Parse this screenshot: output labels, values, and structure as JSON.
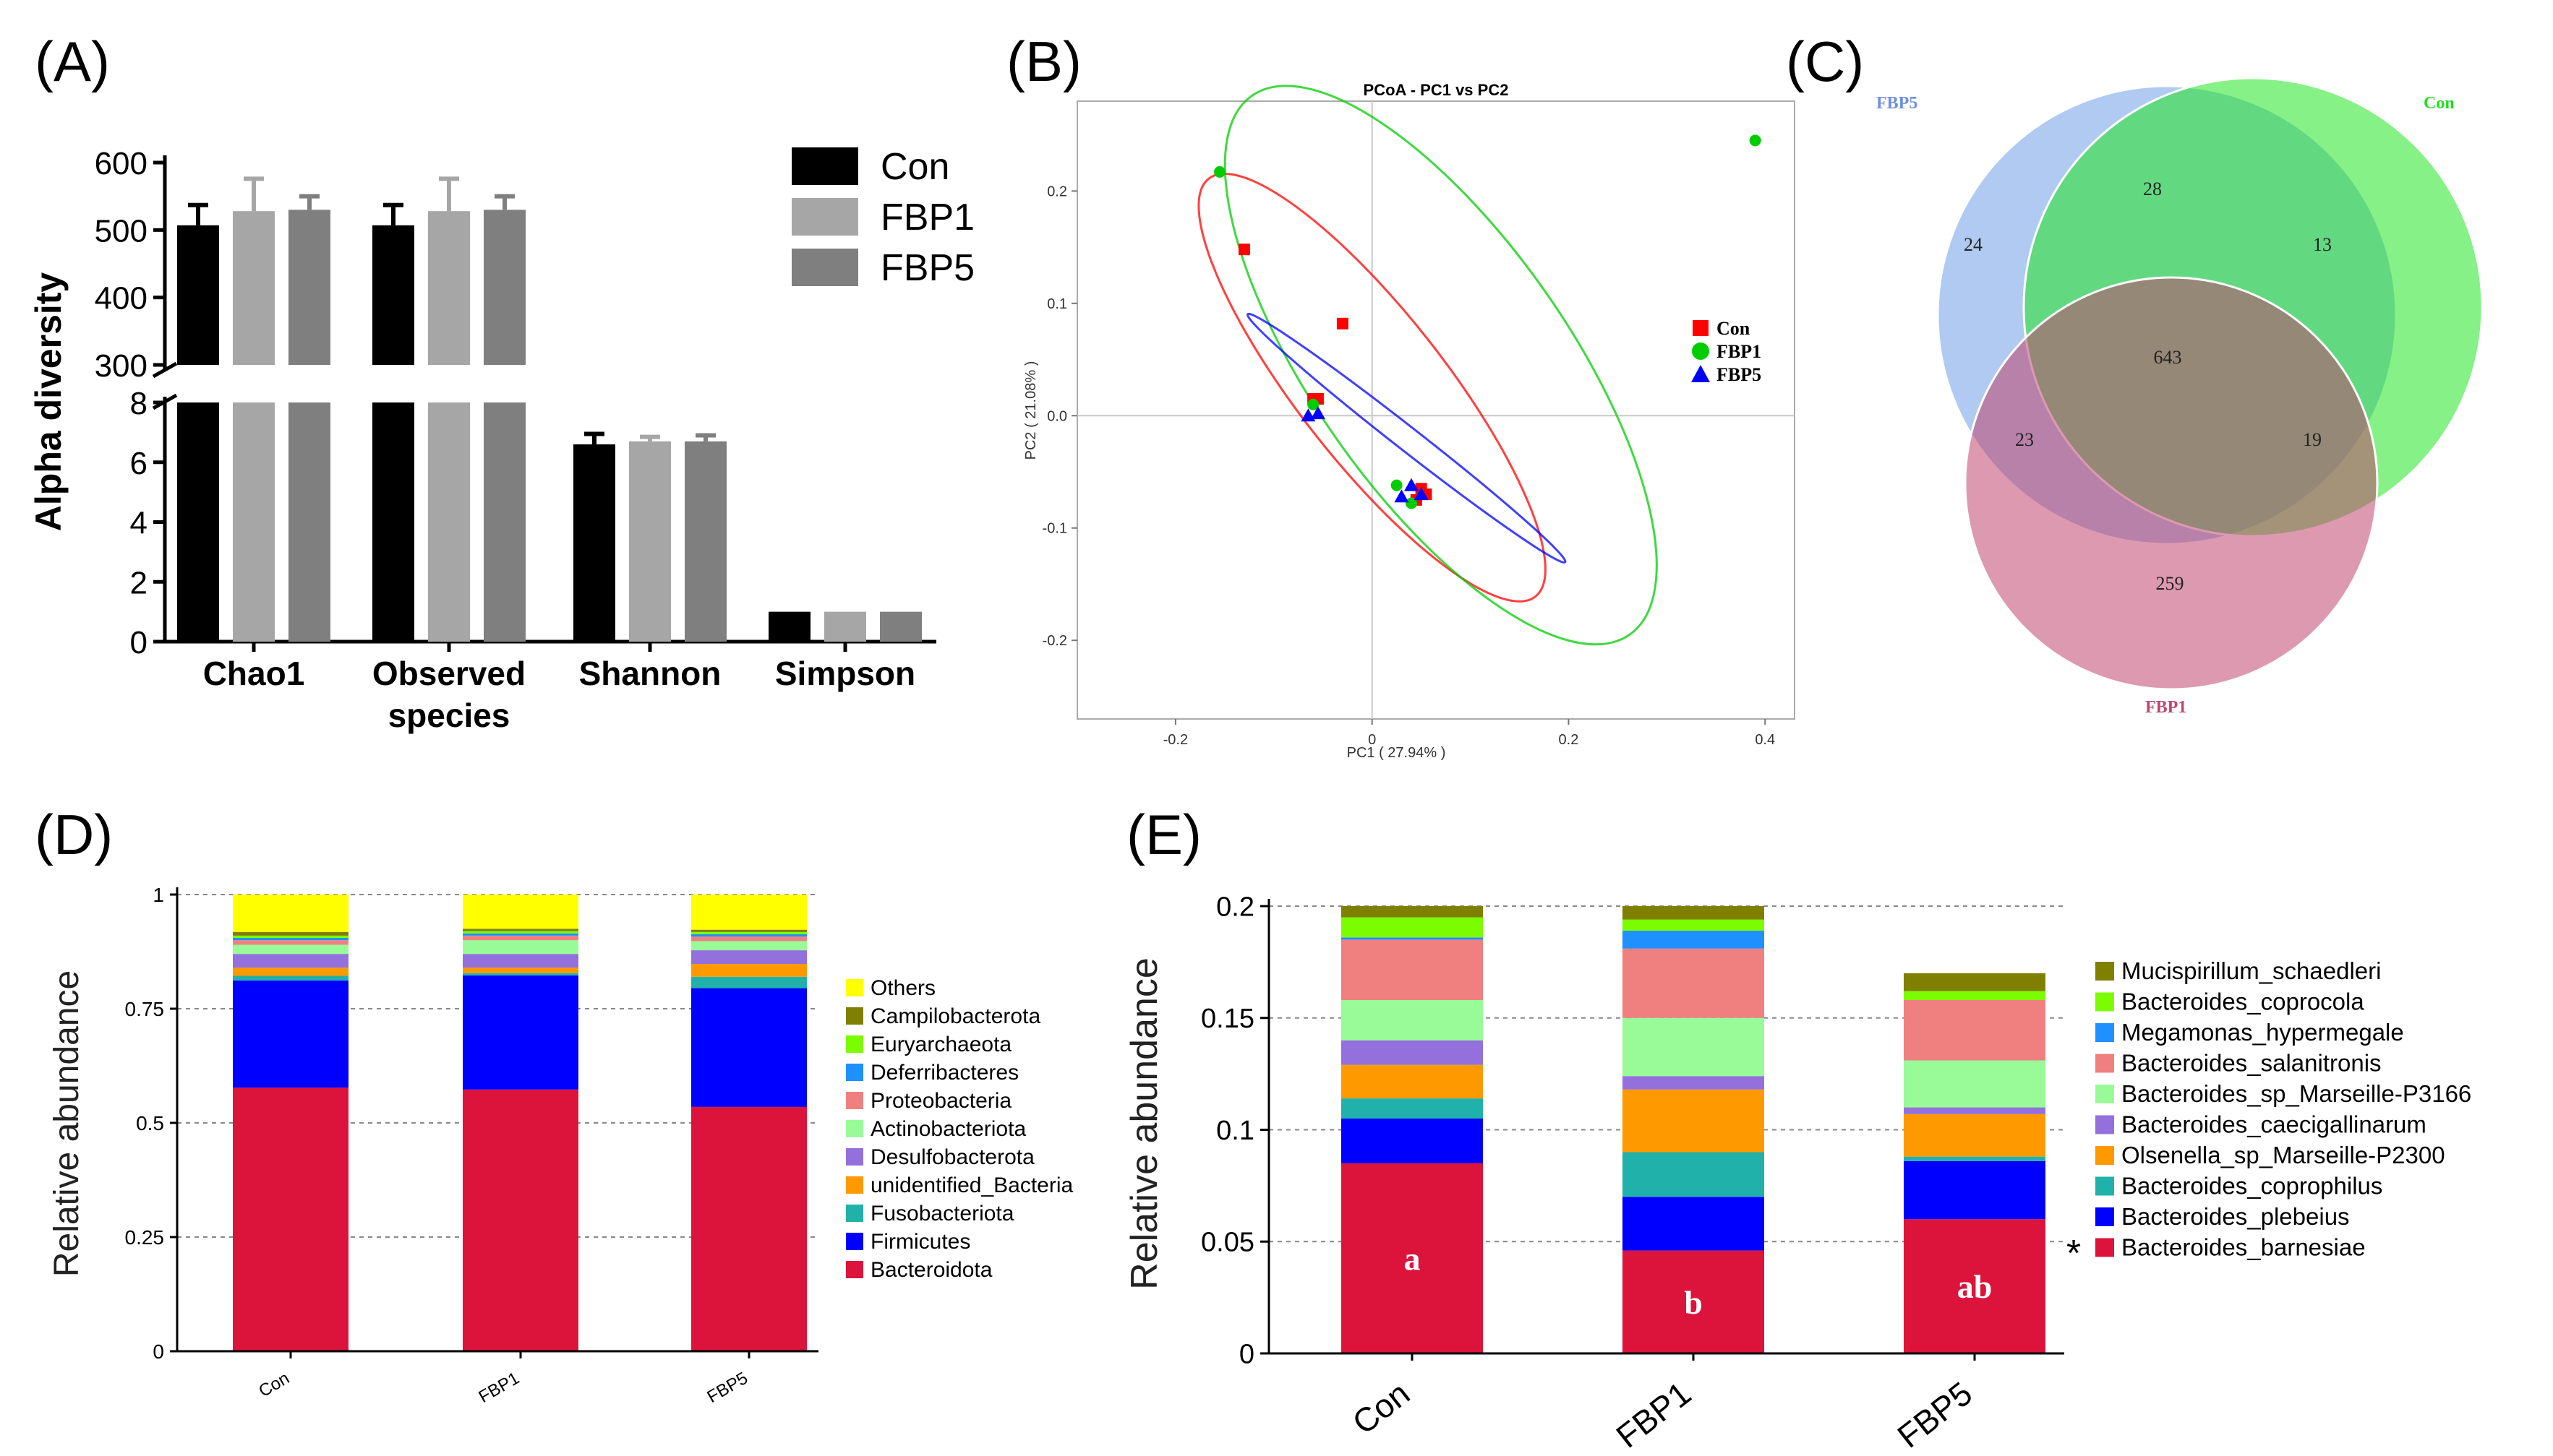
{
  "panels": {
    "a": "(A)",
    "b": "(B)",
    "c": "(C)",
    "d": "(D)",
    "e": "(E)"
  },
  "colors": {
    "Con": "#000000",
    "FBP1": "#a6a6a6",
    "FBP5": "#7f7f7f",
    "scatter_Con": "#ff0000",
    "scatter_FBP1": "#00cc00",
    "scatter_FBP5": "#0000ff",
    "venn_FBP5": "#6f9ee8",
    "venn_Con": "#22e622",
    "venn_FBP1": "#c04670",
    "venn_label_FBP5": "#6f8fe0",
    "venn_label_Con": "#22dd22",
    "venn_label_FBP1": "#c04670"
  },
  "chart_data": [
    {
      "panel": "A",
      "type": "bar",
      "ylabel": "Alpha diversity",
      "categories": [
        "Chao1",
        "Observed species",
        "Shannon",
        "Simpson"
      ],
      "category_lines": [
        [
          "Chao1"
        ],
        [
          "Observed",
          "species"
        ],
        [
          "Shannon"
        ],
        [
          "Simpson"
        ]
      ],
      "broken_axis": {
        "lower": [
          0,
          8
        ],
        "upper": [
          300,
          600
        ]
      },
      "upper_ticks": [
        "300",
        "400",
        "500",
        "600"
      ],
      "lower_ticks": [
        "0",
        "2",
        "4",
        "6",
        "8"
      ],
      "series": [
        {
          "name": "Con",
          "values": [
            507,
            507,
            6.6,
            1.0
          ],
          "errors": [
            30,
            30,
            0.35,
            0.0
          ]
        },
        {
          "name": "FBP1",
          "values": [
            528,
            528,
            6.7,
            1.0
          ],
          "errors": [
            48,
            48,
            0.15,
            0.0
          ]
        },
        {
          "name": "FBP5",
          "values": [
            530,
            530,
            6.7,
            1.0
          ],
          "errors": [
            20,
            20,
            0.2,
            0.0
          ]
        }
      ]
    },
    {
      "panel": "B",
      "type": "scatter",
      "title": "PCoA - PC1 vs PC2",
      "xlabel": "PC1 ( 27.94% )",
      "ylabel": "PC2 ( 21.08% )",
      "xlim": [
        -0.3,
        0.43
      ],
      "ylim": [
        -0.27,
        0.28
      ],
      "xticks": [
        "-0.2",
        "0",
        "0.2",
        "0.4"
      ],
      "yticks": [
        "-0.2",
        "-0.1",
        "0.0",
        "0.1",
        "0.2"
      ],
      "series": [
        {
          "name": "Con",
          "points": [
            [
              -0.13,
              0.148
            ],
            [
              -0.03,
              0.082
            ],
            [
              -0.06,
              0.015
            ],
            [
              -0.055,
              0.015
            ],
            [
              0.05,
              -0.065
            ],
            [
              0.055,
              -0.07
            ],
            [
              0.045,
              -0.075
            ]
          ]
        },
        {
          "name": "FBP1",
          "points": [
            [
              -0.155,
              0.217
            ],
            [
              0.39,
              0.245
            ],
            [
              0.025,
              -0.062
            ],
            [
              0.04,
              -0.078
            ],
            [
              -0.06,
              0.01
            ]
          ]
        },
        {
          "name": "FBP5",
          "points": [
            [
              -0.065,
              0.0
            ],
            [
              -0.055,
              0.002
            ],
            [
              0.04,
              -0.062
            ],
            [
              0.05,
              -0.07
            ],
            [
              0.03,
              -0.072
            ]
          ]
        }
      ],
      "ellipses": [
        {
          "name": "Con",
          "center": [
            0.0,
            0.025
          ],
          "semi_major": 0.27,
          "semi_minor": 0.075,
          "angle_deg": 52
        },
        {
          "name": "FBP1",
          "center": [
            0.07,
            0.045
          ],
          "semi_major": 0.335,
          "semi_minor": 0.13,
          "angle_deg": 55
        },
        {
          "name": "FBP5",
          "center": [
            0.035,
            -0.02
          ],
          "semi_major": 0.205,
          "semi_minor": 0.012,
          "angle_deg": 38
        }
      ]
    },
    {
      "panel": "C",
      "type": "venn",
      "sets": [
        "FBP5",
        "Con",
        "FBP1"
      ],
      "regions": {
        "FBP5_only": "24",
        "Con_only": "13",
        "FBP1_only": "259",
        "FBP5_Con": "28",
        "FBP5_FBP1": "23",
        "Con_FBP1": "19",
        "all": "643"
      }
    },
    {
      "panel": "D",
      "type": "bar",
      "stacked": true,
      "ylabel": "Relative abundance",
      "categories": [
        "Con",
        "FBP1",
        "FBP5"
      ],
      "ylim": [
        0,
        1
      ],
      "yticks": [
        "0",
        "0.25",
        "0.5",
        "0.75",
        "1"
      ],
      "series": [
        {
          "name": "Bacteroidota",
          "color": "#dc143c",
          "values": [
            0.577,
            0.573,
            0.535
          ]
        },
        {
          "name": "Firmicutes",
          "color": "#0000ff",
          "values": [
            0.235,
            0.25,
            0.26
          ]
        },
        {
          "name": "Fusobacteriota",
          "color": "#20b2aa",
          "values": [
            0.01,
            0.005,
            0.025
          ]
        },
        {
          "name": "unidentified_Bacteria",
          "color": "#ff9900",
          "values": [
            0.018,
            0.012,
            0.028
          ]
        },
        {
          "name": "Desulfobacterota",
          "color": "#9370db",
          "values": [
            0.03,
            0.03,
            0.03
          ]
        },
        {
          "name": "Actinobacteriota",
          "color": "#98fb98",
          "values": [
            0.02,
            0.03,
            0.02
          ]
        },
        {
          "name": "Proteobacteria",
          "color": "#f08080",
          "values": [
            0.01,
            0.01,
            0.01
          ]
        },
        {
          "name": "Deferribacteres",
          "color": "#1e90ff",
          "values": [
            0.005,
            0.005,
            0.005
          ]
        },
        {
          "name": "Euryarchaeota",
          "color": "#7cfc00",
          "values": [
            0.005,
            0.005,
            0.005
          ]
        },
        {
          "name": "Campilobacterota",
          "color": "#808000",
          "values": [
            0.008,
            0.005,
            0.005
          ]
        },
        {
          "name": "Others",
          "color": "#ffff00",
          "values": [
            0.082,
            0.075,
            0.077
          ]
        }
      ]
    },
    {
      "panel": "E",
      "type": "bar",
      "stacked": true,
      "ylabel": "Relative abundance",
      "categories": [
        "Con",
        "FBP1",
        "FBP5"
      ],
      "ylim": [
        0,
        0.2
      ],
      "yticks": [
        "0",
        "0.05",
        "0.1",
        "0.15",
        "0.2"
      ],
      "annotations": [
        "a",
        "b",
        "ab"
      ],
      "significance_marker": "*",
      "series": [
        {
          "name": "Bacteroides_barnesiae",
          "color": "#dc143c",
          "values": [
            0.085,
            0.046,
            0.06
          ]
        },
        {
          "name": "Bacteroides_plebeius",
          "color": "#0000ff",
          "values": [
            0.02,
            0.024,
            0.026
          ]
        },
        {
          "name": "Bacteroides_coprophilus",
          "color": "#20b2aa",
          "values": [
            0.009,
            0.02,
            0.002
          ]
        },
        {
          "name": "Olsenella_sp_Marseille-P2300",
          "color": "#ff9900",
          "values": [
            0.015,
            0.028,
            0.019
          ]
        },
        {
          "name": "Bacteroides_caecigallinarum",
          "color": "#9370db",
          "values": [
            0.011,
            0.006,
            0.003
          ]
        },
        {
          "name": "Bacteroides_sp_Marseille-P3166",
          "color": "#98fb98",
          "values": [
            0.018,
            0.026,
            0.021
          ]
        },
        {
          "name": "Bacteroides_salanitronis",
          "color": "#f08080",
          "values": [
            0.027,
            0.031,
            0.027
          ]
        },
        {
          "name": "Megamonas_hypermegale",
          "color": "#1e90ff",
          "values": [
            0.001,
            0.008,
            0.0
          ]
        },
        {
          "name": "Bacteroides_coprocola",
          "color": "#7cfc00",
          "values": [
            0.009,
            0.005,
            0.004
          ]
        },
        {
          "name": "Mucispirillum_schaedleri",
          "color": "#808000",
          "values": [
            0.005,
            0.006,
            0.008
          ]
        }
      ]
    }
  ]
}
